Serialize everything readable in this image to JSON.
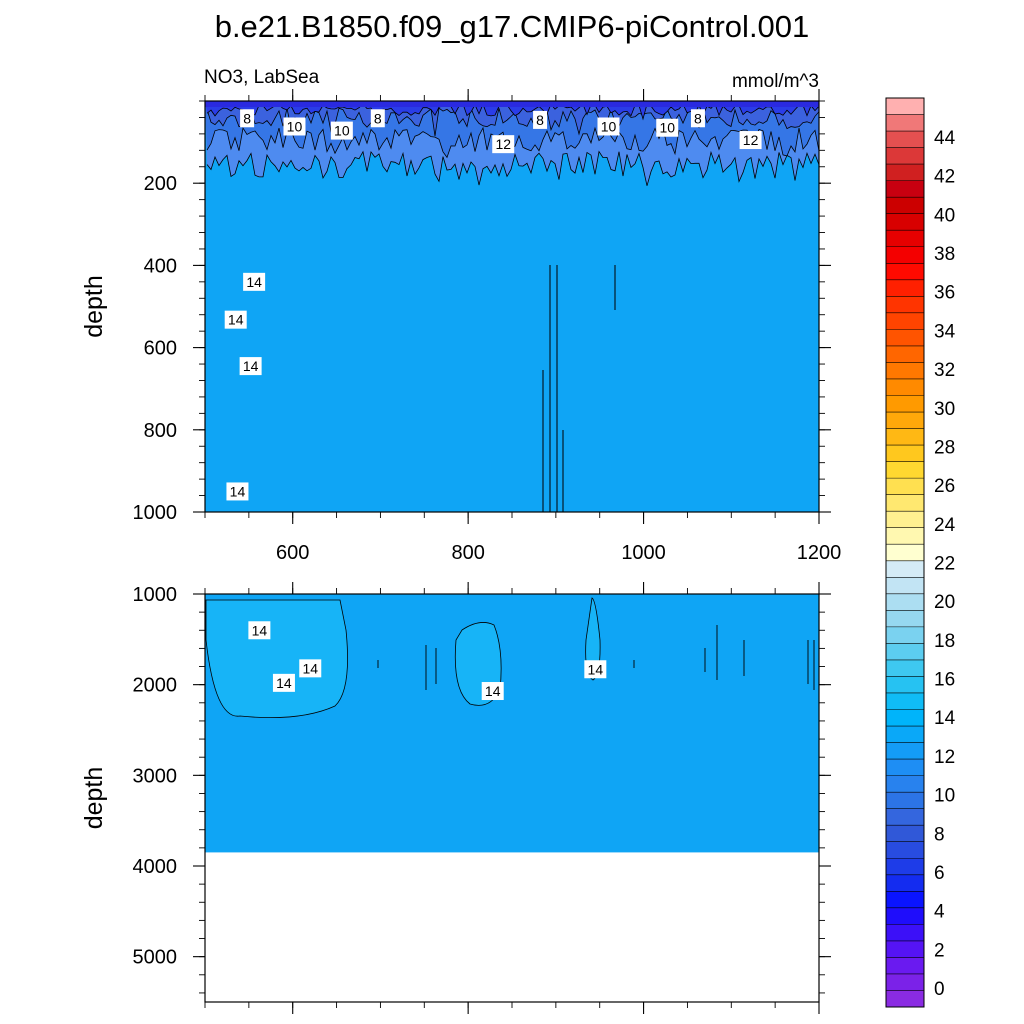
{
  "figure": {
    "title": "b.e21.B1850.f09_g17.CMIP6-piControl.001",
    "variable_label": "NO3, LabSea",
    "units_label": "mmol/m^3"
  },
  "colors": {
    "fill_main": "#0fa5f5",
    "fill_low": "#4e8bf0",
    "fill_surface": "#2a3de8",
    "fill_patch": "#17b4f7",
    "contour": "#000000"
  },
  "chart_data": [
    {
      "type": "heatmap",
      "panel": "upper",
      "xlabel": "",
      "ylabel": "depth",
      "xlim": [
        500,
        1200
      ],
      "ylim": [
        0,
        1000
      ],
      "y_inverted": true,
      "x_ticks": [
        600,
        800,
        1000,
        1200
      ],
      "y_ticks": [
        200,
        400,
        600,
        800,
        1000
      ],
      "dominant_value": 14,
      "contour_labels": [
        {
          "text": "8",
          "x": 548,
          "y": 42
        },
        {
          "text": "10",
          "x": 602,
          "y": 62
        },
        {
          "text": "10",
          "x": 656,
          "y": 72
        },
        {
          "text": "8",
          "x": 697,
          "y": 42
        },
        {
          "text": "12",
          "x": 840,
          "y": 105
        },
        {
          "text": "8",
          "x": 882,
          "y": 46
        },
        {
          "text": "10",
          "x": 960,
          "y": 62
        },
        {
          "text": "10",
          "x": 1027,
          "y": 65
        },
        {
          "text": "8",
          "x": 1062,
          "y": 42
        },
        {
          "text": "12",
          "x": 1122,
          "y": 95
        },
        {
          "text": "14",
          "x": 556,
          "y": 440
        },
        {
          "text": "14",
          "x": 535,
          "y": 532
        },
        {
          "text": "14",
          "x": 552,
          "y": 645
        },
        {
          "text": "14",
          "x": 537,
          "y": 950
        }
      ]
    },
    {
      "type": "heatmap",
      "panel": "lower",
      "xlabel": "",
      "ylabel": "depth",
      "xlim": [
        500,
        1200
      ],
      "ylim": [
        1000,
        5500
      ],
      "y_inverted": true,
      "x_ticks": [
        600,
        800,
        1000,
        1200
      ],
      "y_ticks": [
        1000,
        2000,
        3000,
        4000,
        5000
      ],
      "dominant_value": 14,
      "bottom_depth": 3850,
      "contour_labels": [
        {
          "text": "14",
          "x": 562,
          "y": 1400
        },
        {
          "text": "14",
          "x": 590,
          "y": 1980
        },
        {
          "text": "14",
          "x": 620,
          "y": 1820
        },
        {
          "text": "14",
          "x": 828,
          "y": 2070
        },
        {
          "text": "14",
          "x": 945,
          "y": 1830
        }
      ]
    }
  ],
  "colorbar": {
    "labels": [
      "0",
      "2",
      "4",
      "6",
      "8",
      "10",
      "12",
      "14",
      "16",
      "18",
      "20",
      "22",
      "24",
      "26",
      "28",
      "30",
      "32",
      "34",
      "36",
      "38",
      "40",
      "42",
      "44"
    ],
    "colors": [
      "#8a2be2",
      "#7b22e8",
      "#6a1af0",
      "#5514f5",
      "#3c10f8",
      "#1f0dfb",
      "#0a14ff",
      "#142cf0",
      "#1e3ce8",
      "#284ce0",
      "#3058d8",
      "#3466de",
      "#2c74e6",
      "#2882ee",
      "#1e8ef4",
      "#149cf6",
      "#0aa8f8",
      "#00b4fa",
      "#10bcf6",
      "#26c2f2",
      "#3ec8f0",
      "#5ccdf0",
      "#7ad2f0",
      "#96d8f0",
      "#acdef2",
      "#c2e4f4",
      "#d4ebf6",
      "#ffffd0",
      "#fff8b0",
      "#fff090",
      "#ffe870",
      "#ffe050",
      "#ffd830",
      "#ffc81e",
      "#ffb814",
      "#ffa80a",
      "#ff9a00",
      "#ff8a00",
      "#ff7800",
      "#ff6600",
      "#ff5400",
      "#ff4400",
      "#ff3400",
      "#ff2000",
      "#ff0a00",
      "#f40000",
      "#e60000",
      "#d80000",
      "#cc0000",
      "#c80010",
      "#d02020",
      "#dc3838",
      "#e45050",
      "#f07878",
      "#ffb0b0"
    ]
  }
}
